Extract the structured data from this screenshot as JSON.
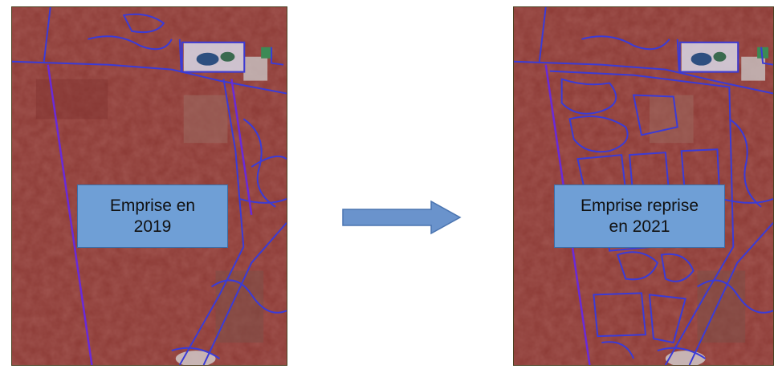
{
  "left_panel": {
    "label_line1": "Emprise en",
    "label_line2": "2019"
  },
  "right_panel": {
    "label_line1": "Emprise reprise",
    "label_line2": "en 2021"
  },
  "arrow": {
    "direction": "right",
    "color": "#6a93cc"
  },
  "colors": {
    "imagery": "#8a3b35",
    "parcel_lines": "#3b3bd6",
    "label_fill": "#6f9fd6"
  }
}
